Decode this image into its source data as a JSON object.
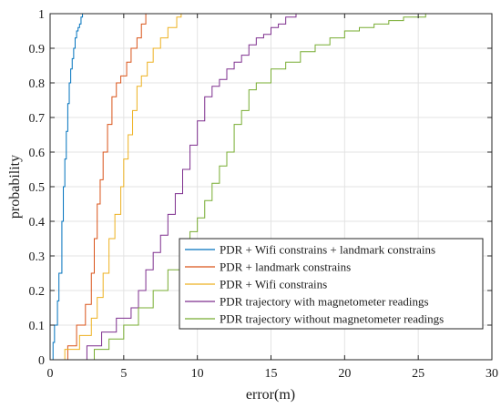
{
  "chart_data": {
    "type": "line",
    "xlabel": "error(m)",
    "ylabel": "probability",
    "xlim": [
      0,
      30
    ],
    "ylim": [
      0,
      1
    ],
    "xticks": [
      0,
      5,
      10,
      15,
      20,
      25,
      30
    ],
    "yticks": [
      0,
      0.1,
      0.2,
      0.3,
      0.4,
      0.5,
      0.6,
      0.7,
      0.8,
      0.9,
      1
    ],
    "xtick_labels": [
      "0",
      "5",
      "10",
      "15",
      "20",
      "25",
      "30"
    ],
    "ytick_labels": [
      "0",
      "0.1",
      "0.2",
      "0.3",
      "0.4",
      "0.5",
      "0.6",
      "0.7",
      "0.8",
      "0.9",
      "1"
    ],
    "grid": true,
    "legend_position": "bottom-right",
    "series": [
      {
        "name": "PDR + Wifi constrains + landmark constrains",
        "color": "#0072BD",
        "x": [
          0,
          0.2,
          0.3,
          0.5,
          0.6,
          0.8,
          0.9,
          1.0,
          1.1,
          1.2,
          1.3,
          1.4,
          1.5,
          1.6,
          1.7,
          1.8,
          1.9,
          2.0,
          2.1,
          2.2
        ],
        "y": [
          0,
          0.05,
          0.1,
          0.17,
          0.25,
          0.4,
          0.5,
          0.58,
          0.66,
          0.74,
          0.8,
          0.84,
          0.87,
          0.9,
          0.93,
          0.95,
          0.96,
          0.97,
          0.99,
          1.0
        ]
      },
      {
        "name": "PDR + landmark constrains",
        "color": "#D95319",
        "x": [
          0.5,
          1.2,
          1.8,
          2.4,
          2.8,
          3.0,
          3.2,
          3.4,
          3.6,
          3.9,
          4.2,
          4.5,
          4.8,
          5.2,
          5.5,
          5.9,
          6.2,
          6.5
        ],
        "y": [
          0.0,
          0.04,
          0.1,
          0.16,
          0.25,
          0.35,
          0.45,
          0.52,
          0.6,
          0.68,
          0.76,
          0.8,
          0.82,
          0.86,
          0.9,
          0.93,
          0.97,
          1.0
        ]
      },
      {
        "name": "PDR + Wifi constrains",
        "color": "#EDB120",
        "x": [
          0.2,
          1.0,
          2.0,
          2.8,
          3.2,
          3.6,
          4.0,
          4.4,
          4.8,
          5.0,
          5.3,
          5.6,
          5.9,
          6.2,
          6.6,
          7.0,
          7.5,
          8.0,
          8.6,
          8.9
        ],
        "y": [
          0.0,
          0.03,
          0.07,
          0.12,
          0.18,
          0.25,
          0.35,
          0.42,
          0.5,
          0.58,
          0.65,
          0.72,
          0.79,
          0.82,
          0.86,
          0.9,
          0.93,
          0.96,
          0.99,
          1.0
        ]
      },
      {
        "name": "PDR trajectory with magnetometer readings",
        "color": "#7E2F8E",
        "x": [
          1.8,
          2.5,
          3.5,
          4.5,
          5.5,
          6.0,
          6.5,
          7.0,
          7.5,
          8.0,
          8.5,
          9.0,
          9.5,
          10.0,
          10.5,
          11.0,
          11.5,
          12.0,
          12.5,
          13.0,
          13.5,
          14.0,
          14.5,
          15.0,
          15.5,
          16.0,
          16.7
        ],
        "y": [
          0.0,
          0.04,
          0.08,
          0.12,
          0.15,
          0.2,
          0.26,
          0.31,
          0.36,
          0.42,
          0.48,
          0.55,
          0.62,
          0.69,
          0.76,
          0.79,
          0.81,
          0.84,
          0.86,
          0.88,
          0.91,
          0.93,
          0.94,
          0.96,
          0.97,
          0.99,
          1.0
        ]
      },
      {
        "name": "PDR trajectory without magnetometer readings",
        "color": "#77AC30",
        "x": [
          2.0,
          3.0,
          4.0,
          5.0,
          6.0,
          7.0,
          8.0,
          9.0,
          9.5,
          10.0,
          10.5,
          11.0,
          11.5,
          12.0,
          12.5,
          13.0,
          13.5,
          14.0,
          15.0,
          16.0,
          17.0,
          18.0,
          19.0,
          20.0,
          21.0,
          22.0,
          23.0,
          24.0,
          25.5
        ],
        "y": [
          0.0,
          0.03,
          0.06,
          0.1,
          0.15,
          0.2,
          0.26,
          0.32,
          0.37,
          0.41,
          0.46,
          0.51,
          0.56,
          0.6,
          0.68,
          0.72,
          0.78,
          0.8,
          0.84,
          0.86,
          0.89,
          0.91,
          0.93,
          0.95,
          0.96,
          0.97,
          0.98,
          0.99,
          1.0
        ]
      }
    ]
  }
}
